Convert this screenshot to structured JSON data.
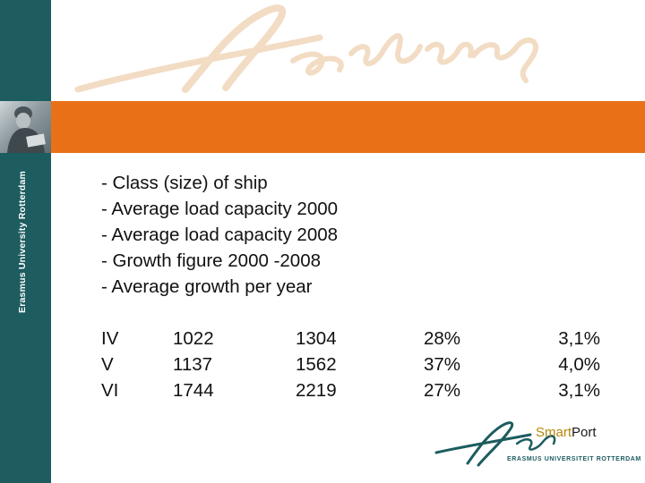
{
  "sidebar": {
    "university_name": "Erasmus University Rotterdam"
  },
  "header": {
    "signature_text": "Erasmus"
  },
  "bullets": [
    "- Class (size) of ship",
    "- Average load capacity 2000",
    "- Average load capacity 2008",
    "- Growth figure 2000 -2008",
    "- Average growth per year"
  ],
  "table": {
    "rows": [
      [
        "IV",
        "1022",
        "1304",
        "28%",
        "3,1%"
      ],
      [
        "V",
        "1137",
        "1562",
        "37%",
        "4,0%"
      ],
      [
        "VI",
        "1744",
        "2219",
        "27%",
        "3,1%"
      ]
    ]
  },
  "footer": {
    "brand_part1": "Smart",
    "brand_part2": "Port",
    "logo_caption": "ERASMUS UNIVERSITEIT ROTTERDAM"
  },
  "colors": {
    "sidebar": "#1d5c5f",
    "accent": "#e87117",
    "signature": "#f2dcc4"
  }
}
